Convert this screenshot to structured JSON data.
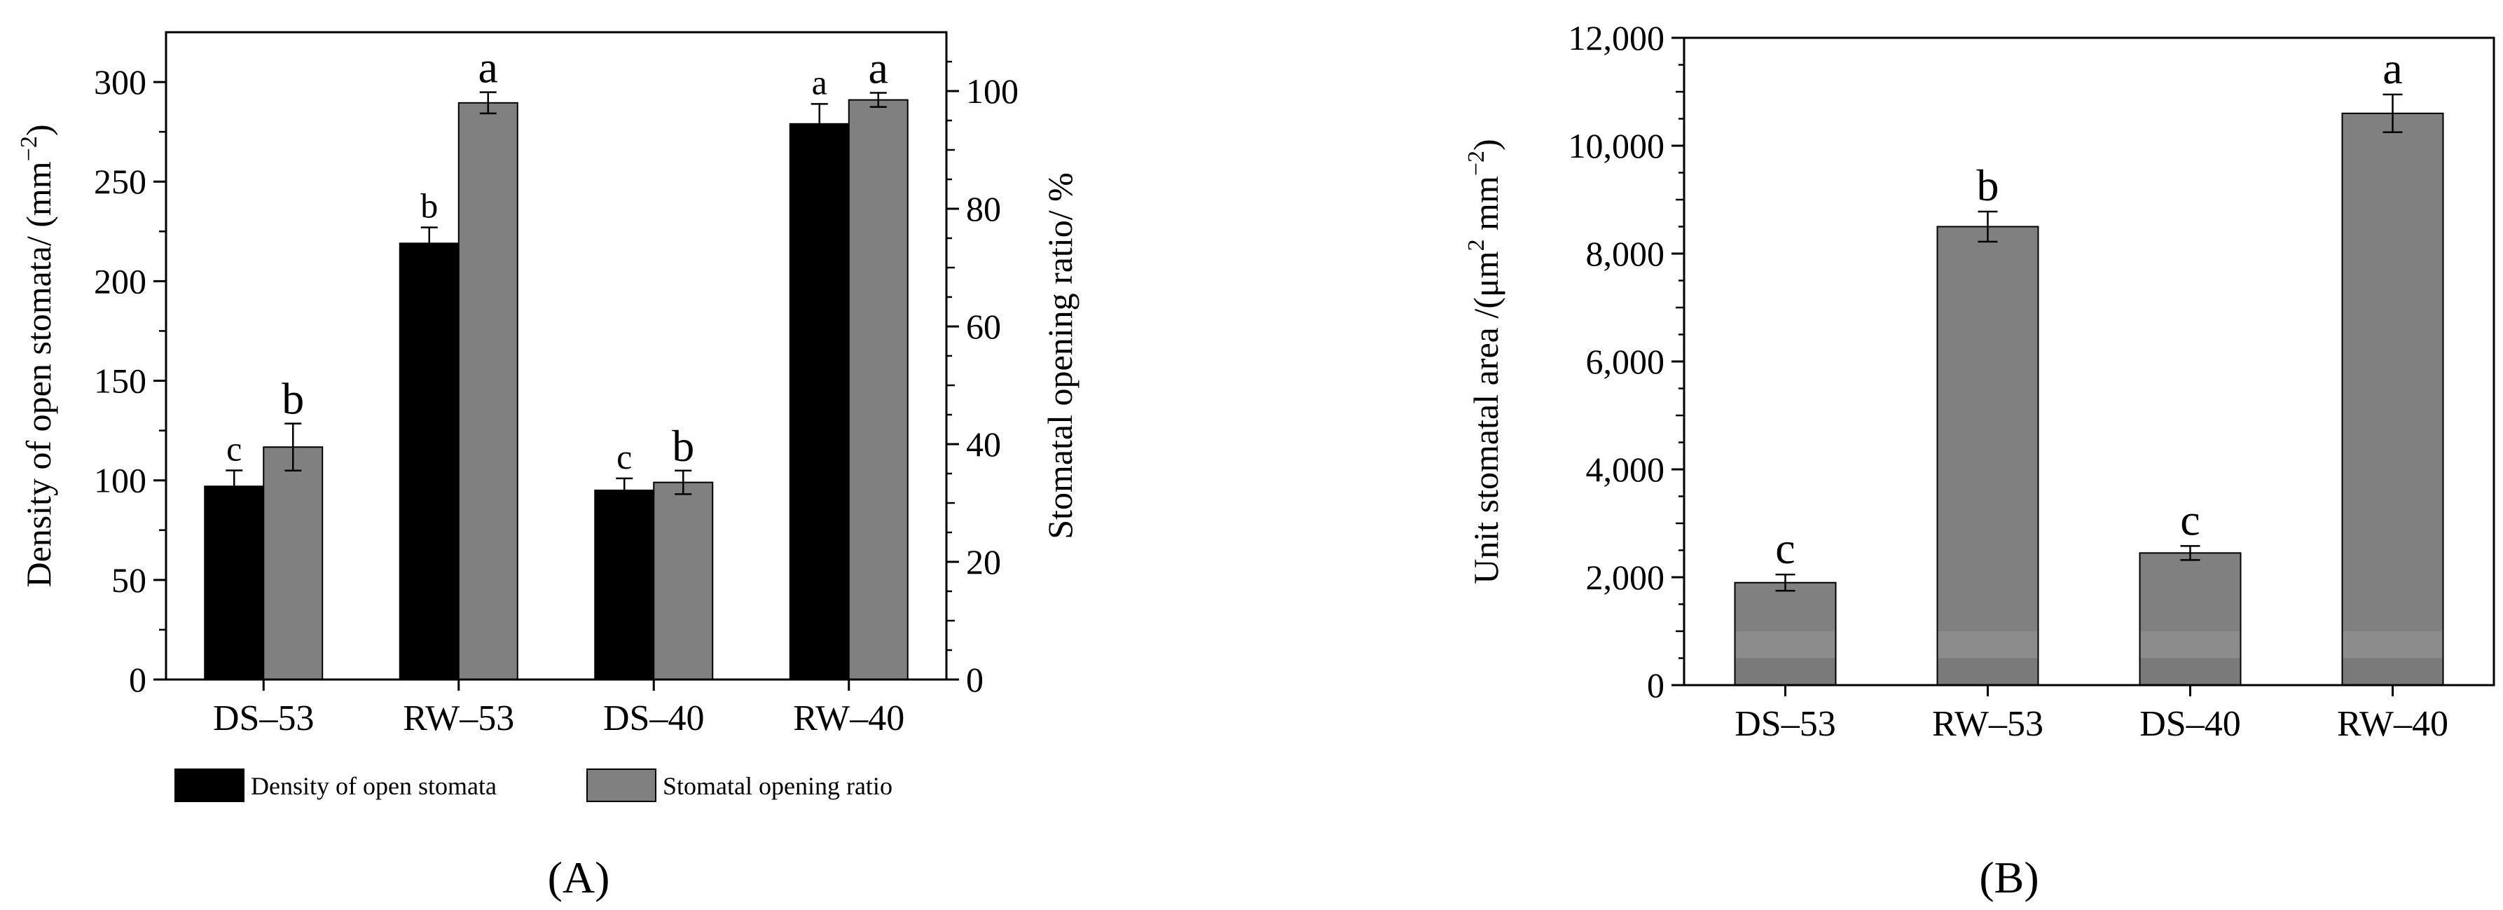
{
  "chart_data": [
    {
      "type": "bar",
      "panel_label": "(A)",
      "categories": [
        "DS–53",
        "RW–53",
        "DS–40",
        "RW–40"
      ],
      "ylabel": "Density of open stomata/ (mm",
      "ylabel_sup": "−2",
      "ylabel_close": ")",
      "ylim": [
        0,
        325
      ],
      "yticks": [
        "0",
        "50",
        "100",
        "150",
        "200",
        "250",
        "300"
      ],
      "y2label": "Stomatal opening ratio/ %",
      "y2lim": [
        0,
        110
      ],
      "y2ticks": [
        "0",
        "20",
        "40",
        "60",
        "80",
        "100"
      ],
      "legend_position": "bottom",
      "series": [
        {
          "name": "Density of open stomata",
          "axis": "left",
          "color": "#000000",
          "values": [
            97,
            219,
            95,
            279
          ],
          "errors": [
            8,
            8,
            6,
            10
          ],
          "letters": [
            "c",
            "b",
            "c",
            "a"
          ]
        },
        {
          "name": "Stomatal opening ratio",
          "axis": "right",
          "color": "#808080",
          "values": [
            39.5,
            98,
            33.5,
            98.5
          ],
          "errors": [
            4,
            1.8,
            2,
            1.2
          ],
          "letters": [
            "b",
            "a",
            "b",
            "a"
          ]
        }
      ]
    },
    {
      "type": "bar",
      "panel_label": "(B)",
      "categories": [
        "DS–53",
        "RW–53",
        "DS–40",
        "RW–40"
      ],
      "ylabel_pre": "Unit stomatal area /(μm",
      "ylabel_sup1": "2",
      "ylabel_mid": " mm",
      "ylabel_sup2": "−2",
      "ylabel_close": ")",
      "ylim": [
        0,
        12000
      ],
      "yticks": [
        "0",
        "2,000",
        "4,000",
        "6,000",
        "8,000",
        "10,000",
        "12,000"
      ],
      "bar_color": "#808080",
      "values": [
        1900,
        8500,
        2450,
        10600
      ],
      "errors": [
        150,
        280,
        130,
        350
      ],
      "letters": [
        "c",
        "b",
        "c",
        "a"
      ]
    }
  ]
}
